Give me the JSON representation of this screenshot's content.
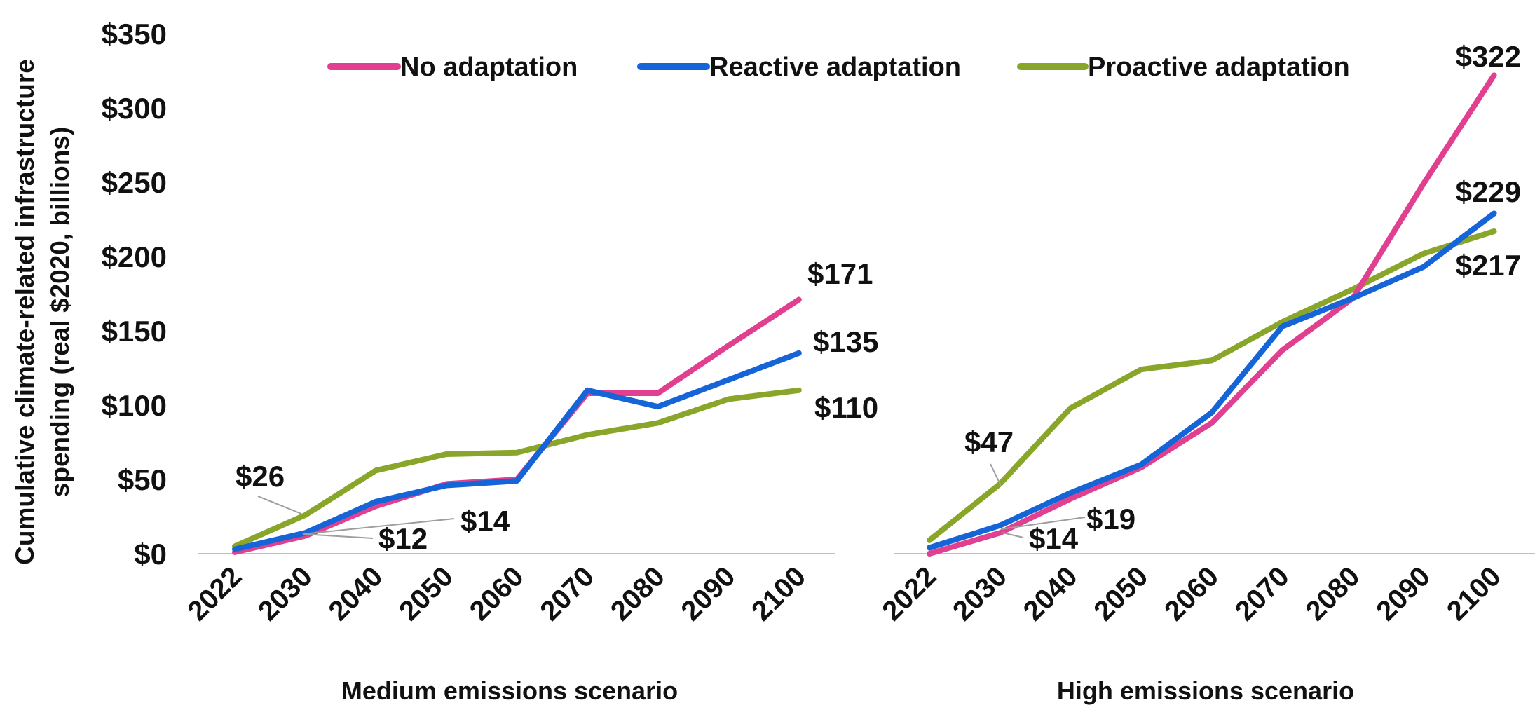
{
  "colors": {
    "No adaptation": "#e0408f",
    "Reactive adaptation": "#1565d8",
    "Proactive adaptation": "#8aa62a",
    "axis": "#bfbfbf",
    "leader": "#9e9e9e"
  },
  "chart_data": {
    "type": "line",
    "ylabel": "Cumulative climate-related infrastructure spending (real $2020, billions)",
    "ylim": [
      0,
      350
    ],
    "yticks": [
      "$0",
      "$50",
      "$100",
      "$150",
      "$200",
      "$250",
      "$300",
      "$350"
    ],
    "legend": [
      "No adaptation",
      "Reactive adaptation",
      "Proactive adaptation"
    ],
    "legend_position": "top",
    "grid": false,
    "panels": [
      {
        "title": "Medium emissions scenario",
        "categories": [
          "2022",
          "2030",
          "2040",
          "2050",
          "2060",
          "2070",
          "2080",
          "2090",
          "2100"
        ],
        "series": [
          {
            "name": "No adaptation",
            "values": [
              1,
              12,
              32,
              47,
              50,
              108,
              108,
              140,
              171
            ]
          },
          {
            "name": "Reactive adaptation",
            "values": [
              3,
              14,
              35,
              46,
              49,
              110,
              99,
              117,
              135
            ]
          },
          {
            "name": "Proactive adaptation",
            "values": [
              5,
              26,
              56,
              67,
              68,
              80,
              88,
              104,
              110
            ]
          }
        ],
        "annotations": [
          {
            "text": "$171"
          },
          {
            "text": "$135"
          },
          {
            "text": "$110"
          },
          {
            "text": "$26"
          },
          {
            "text": "$14"
          },
          {
            "text": "$12"
          }
        ]
      },
      {
        "title": "High emissions scenario",
        "categories": [
          "2022",
          "2030",
          "2040",
          "2050",
          "2060",
          "2070",
          "2080",
          "2090",
          "2100"
        ],
        "series": [
          {
            "name": "No adaptation",
            "values": [
              0,
              14,
              37,
              58,
              88,
              137,
              172,
              249,
              322
            ]
          },
          {
            "name": "Reactive adaptation",
            "values": [
              4,
              19,
              41,
              60,
              95,
              153,
              172,
              193,
              229
            ]
          },
          {
            "name": "Proactive adaptation",
            "values": [
              9,
              47,
              98,
              124,
              130,
              156,
              178,
              202,
              217
            ]
          }
        ],
        "annotations": [
          {
            "text": "$322"
          },
          {
            "text": "$229"
          },
          {
            "text": "$217"
          },
          {
            "text": "$47"
          },
          {
            "text": "$19"
          },
          {
            "text": "$14"
          }
        ]
      }
    ]
  }
}
